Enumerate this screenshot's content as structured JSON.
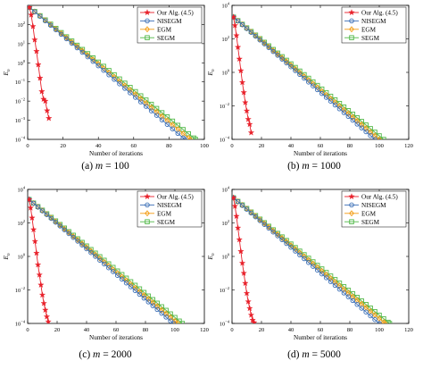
{
  "colors": {
    "alg": "#e8202a",
    "nisegm": "#3b6fb6",
    "egm": "#f39c12",
    "segm": "#52b848"
  },
  "markers": {
    "Our Alg. (4.5)": "star",
    "NISEGM": "circle",
    "EGM": "diamond",
    "SEGM": "square"
  },
  "chart_data": [
    {
      "type": "line",
      "caption": "(a)  m = 100",
      "xlabel": "Number of iterations",
      "ylabel": "E_n",
      "xlim": [
        0,
        100
      ],
      "xticks": [
        0,
        20,
        40,
        60,
        80,
        100
      ],
      "ylog": true,
      "ylim_exp": [
        -4,
        3
      ],
      "ytick_exps": [
        -4,
        -3,
        -2,
        -1,
        0,
        1,
        2
      ],
      "series": [
        {
          "name": "Our Alg. (4.5)",
          "key": "alg",
          "marker": "star",
          "x": [
            1,
            2,
            3,
            4,
            5,
            6,
            7,
            8,
            9,
            10,
            11,
            12
          ],
          "log10": [
            2.9,
            2.5,
            1.9,
            1.2,
            0.6,
            -0.1,
            -0.8,
            -1.5,
            -1.9,
            -2.0,
            -2.5,
            -2.9
          ]
        },
        {
          "name": "NISEGM",
          "key": "nisegm",
          "marker": "circle",
          "x_end": 89,
          "log10_start": 2.9,
          "log10_end": -4.0
        },
        {
          "name": "EGM",
          "key": "egm",
          "marker": "diamond",
          "x_end": 92,
          "log10_start": 2.9,
          "log10_end": -4.0
        },
        {
          "name": "SEGM",
          "key": "segm",
          "marker": "square",
          "x_end": 95,
          "log10_start": 2.9,
          "log10_end": -4.0
        }
      ]
    },
    {
      "type": "line",
      "caption": "(b)  m = 1000",
      "xlabel": "Number of iterations",
      "ylabel": "E_n",
      "xlim": [
        0,
        120
      ],
      "xticks": [
        0,
        20,
        40,
        60,
        80,
        100,
        120
      ],
      "ylog": true,
      "ylim_exp": [
        -4,
        4
      ],
      "ytick_exps": [
        -4,
        -2,
        0,
        2,
        4
      ],
      "series": [
        {
          "name": "Our Alg. (4.5)",
          "key": "alg",
          "marker": "star",
          "x": [
            1,
            2,
            3,
            4,
            5,
            6,
            7,
            8,
            9,
            10,
            11,
            12,
            13
          ],
          "log10": [
            3.3,
            2.8,
            2.2,
            1.5,
            0.8,
            0.1,
            -0.6,
            -1.2,
            -1.8,
            -2.3,
            -2.8,
            -3.1,
            -3.6
          ]
        },
        {
          "name": "NISEGM",
          "key": "nisegm",
          "marker": "circle",
          "x_end": 97,
          "log10_start": 3.3,
          "log10_end": -4.0
        },
        {
          "name": "EGM",
          "key": "egm",
          "marker": "diamond",
          "x_end": 100,
          "log10_start": 3.3,
          "log10_end": -4.0
        },
        {
          "name": "SEGM",
          "key": "segm",
          "marker": "square",
          "x_end": 103,
          "log10_start": 3.3,
          "log10_end": -4.0
        }
      ]
    },
    {
      "type": "line",
      "caption": "(c)  m = 2000",
      "xlabel": "Number of iterations",
      "ylabel": "E_n",
      "xlim": [
        0,
        120
      ],
      "xticks": [
        0,
        20,
        40,
        60,
        80,
        100,
        120
      ],
      "ylog": true,
      "ylim_exp": [
        -4,
        4
      ],
      "ytick_exps": [
        -4,
        -2,
        0,
        2,
        4
      ],
      "series": [
        {
          "name": "Our Alg. (4.5)",
          "key": "alg",
          "marker": "star",
          "x": [
            1,
            2,
            3,
            4,
            5,
            6,
            7,
            8,
            9,
            10,
            11,
            12,
            13,
            14
          ],
          "log10": [
            3.4,
            2.9,
            2.3,
            1.6,
            0.9,
            0.2,
            -0.5,
            -1.1,
            -1.7,
            -2.3,
            -2.8,
            -3.2,
            -3.6,
            -3.9
          ]
        },
        {
          "name": "NISEGM",
          "key": "nisegm",
          "marker": "circle",
          "x_end": 99,
          "log10_start": 3.4,
          "log10_end": -4.0
        },
        {
          "name": "EGM",
          "key": "egm",
          "marker": "diamond",
          "x_end": 102,
          "log10_start": 3.4,
          "log10_end": -4.0
        },
        {
          "name": "SEGM",
          "key": "segm",
          "marker": "square",
          "x_end": 105,
          "log10_start": 3.4,
          "log10_end": -4.0
        }
      ]
    },
    {
      "type": "line",
      "caption": "(d)  m = 5000",
      "xlabel": "Number of iterations",
      "ylabel": "E_n",
      "xlim": [
        0,
        120
      ],
      "xticks": [
        0,
        20,
        40,
        60,
        80,
        100,
        120
      ],
      "ylog": true,
      "ylim_exp": [
        -4,
        4
      ],
      "ytick_exps": [
        -4,
        -2,
        0,
        2,
        4
      ],
      "series": [
        {
          "name": "Our Alg. (4.5)",
          "key": "alg",
          "marker": "star",
          "x": [
            1,
            2,
            3,
            4,
            5,
            6,
            7,
            8,
            9,
            10,
            11,
            12,
            13,
            14,
            15
          ],
          "log10": [
            3.5,
            3.0,
            2.4,
            1.7,
            1.0,
            0.3,
            -0.4,
            -1.0,
            -1.6,
            -2.2,
            -2.7,
            -3.1,
            -3.5,
            -3.8,
            -3.95
          ]
        },
        {
          "name": "NISEGM",
          "key": "nisegm",
          "marker": "circle",
          "x_end": 100,
          "log10_start": 3.5,
          "log10_end": -4.0
        },
        {
          "name": "EGM",
          "key": "egm",
          "marker": "diamond",
          "x_end": 104,
          "log10_start": 3.5,
          "log10_end": -4.0
        },
        {
          "name": "SEGM",
          "key": "segm",
          "marker": "square",
          "x_end": 107,
          "log10_start": 3.5,
          "log10_end": -4.0
        }
      ]
    }
  ]
}
